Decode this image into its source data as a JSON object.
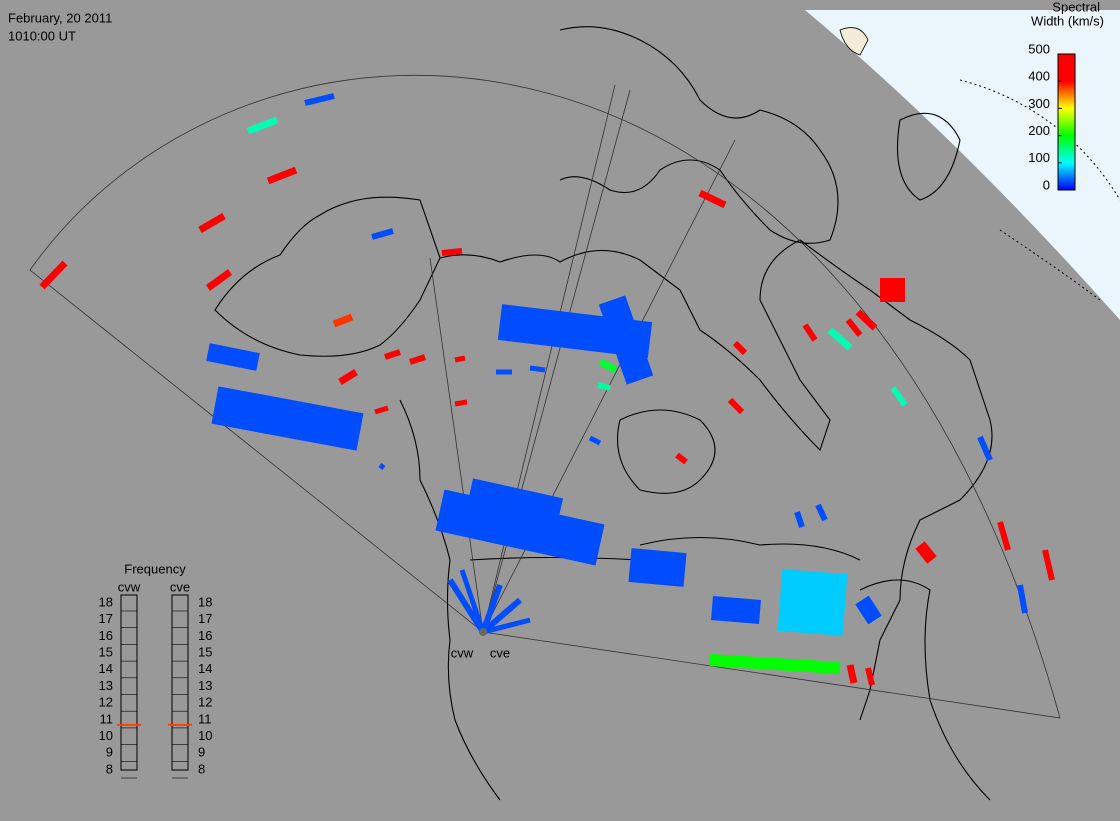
{
  "header": {
    "date": "February, 20 2011",
    "time": "1010:00 UT"
  },
  "colorbar": {
    "title": [
      "Spectral",
      "Width (km/s)"
    ],
    "lim": [
      0,
      500
    ],
    "ticks": [
      0,
      100,
      200,
      300,
      400,
      500
    ]
  },
  "frequency": {
    "title": "Frequency",
    "radars": [
      "cvw",
      "cve"
    ],
    "lim": [
      8,
      18
    ],
    "ticks": [
      8,
      9,
      10,
      11,
      12,
      13,
      14,
      15,
      16,
      17,
      18
    ],
    "values": [
      10.7,
      10.7
    ]
  },
  "radars": [
    "cvw",
    "cve"
  ],
  "cells": [
    450,
    130,
    30,
    450,
    450,
    450,
    30,
    450,
    380,
    30,
    30,
    30,
    30,
    30,
    30,
    450,
    450,
    450,
    450,
    450,
    450,
    450,
    450,
    450,
    130,
    450,
    450,
    450,
    450,
    130,
    450,
    30,
    450,
    450,
    30,
    30,
    30,
    80,
    30,
    200,
    450,
    450,
    30,
    30,
    450,
    30,
    180,
    140,
    30,
    30,
    30,
    30,
    30,
    30,
    30,
    30
  ]
}
